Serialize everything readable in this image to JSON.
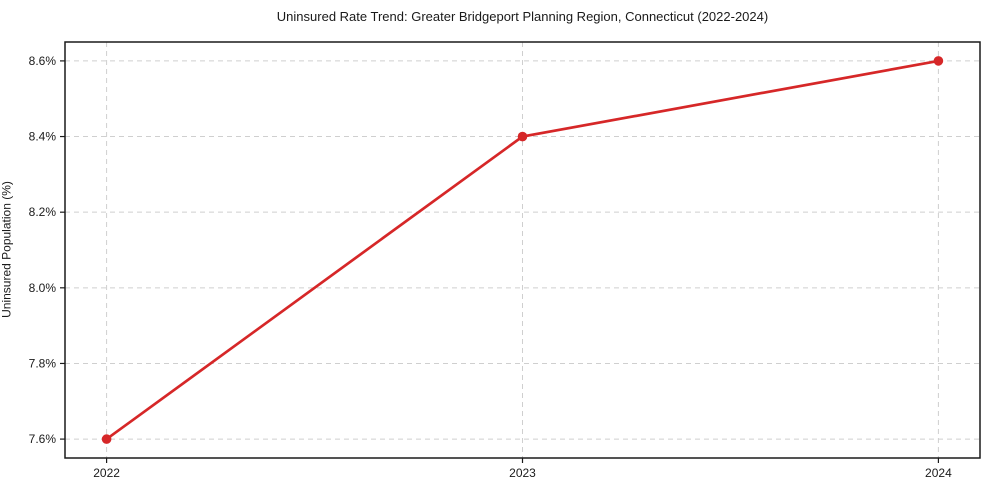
{
  "chart_data": {
    "type": "line",
    "title": "Uninsured Rate Trend: Greater Bridgeport Planning Region, Connecticut (2022-2024)",
    "xlabel": "",
    "ylabel": "Uninsured Population (%)",
    "x": [
      2022,
      2023,
      2024
    ],
    "series": [
      {
        "name": "Uninsured Rate",
        "values": [
          7.6,
          8.4,
          8.6
        ]
      }
    ],
    "x_tick_labels": [
      "2022",
      "2023",
      "2024"
    ],
    "y_tick_values": [
      7.6,
      7.8,
      8.0,
      8.2,
      8.4,
      8.6
    ],
    "y_tick_labels": [
      "7.6%",
      "7.8%",
      "8.0%",
      "8.2%",
      "8.4%",
      "8.6%"
    ],
    "xlim": [
      2021.9,
      2024.1
    ],
    "ylim": [
      7.55,
      8.65
    ],
    "grid": true,
    "grid_style": "dashed",
    "legend": "none",
    "marker": "circle",
    "colors": {
      "line": "#d62728",
      "marker": "#d62728",
      "grid": "#cfcfcf",
      "spine": "#1a1a1a",
      "tick": "#1a1a1a",
      "background": "#ffffff"
    }
  }
}
